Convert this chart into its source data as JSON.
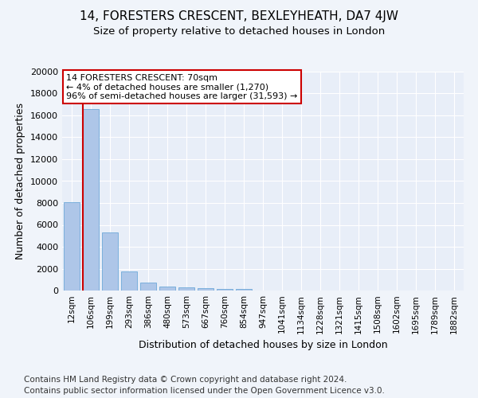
{
  "title": "14, FORESTERS CRESCENT, BEXLEYHEATH, DA7 4JW",
  "subtitle": "Size of property relative to detached houses in London",
  "xlabel": "Distribution of detached houses by size in London",
  "ylabel": "Number of detached properties",
  "categories": [
    "12sqm",
    "106sqm",
    "199sqm",
    "293sqm",
    "386sqm",
    "480sqm",
    "573sqm",
    "667sqm",
    "760sqm",
    "854sqm",
    "947sqm",
    "1041sqm",
    "1134sqm",
    "1228sqm",
    "1321sqm",
    "1415sqm",
    "1508sqm",
    "1602sqm",
    "1695sqm",
    "1789sqm",
    "1882sqm"
  ],
  "values": [
    8100,
    16600,
    5300,
    1750,
    700,
    350,
    270,
    220,
    180,
    150,
    0,
    0,
    0,
    0,
    0,
    0,
    0,
    0,
    0,
    0,
    0
  ],
  "bar_color": "#aec6e8",
  "bar_edge_color": "#5a9fd4",
  "vline_color": "#cc0000",
  "annotation_box_text": "14 FORESTERS CRESCENT: 70sqm\n← 4% of detached houses are smaller (1,270)\n96% of semi-detached houses are larger (31,593) →",
  "annotation_box_color": "#cc0000",
  "annotation_box_facecolor": "white",
  "ylim": [
    0,
    20000
  ],
  "yticks": [
    0,
    2000,
    4000,
    6000,
    8000,
    10000,
    12000,
    14000,
    16000,
    18000,
    20000
  ],
  "footer_line1": "Contains HM Land Registry data © Crown copyright and database right 2024.",
  "footer_line2": "Contains public sector information licensed under the Open Government Licence v3.0.",
  "bg_color": "#f0f4fa",
  "plot_bg_color": "#e8eef8",
  "title_fontsize": 11,
  "subtitle_fontsize": 9.5,
  "xlabel_fontsize": 9,
  "ylabel_fontsize": 9,
  "footer_fontsize": 7.5
}
